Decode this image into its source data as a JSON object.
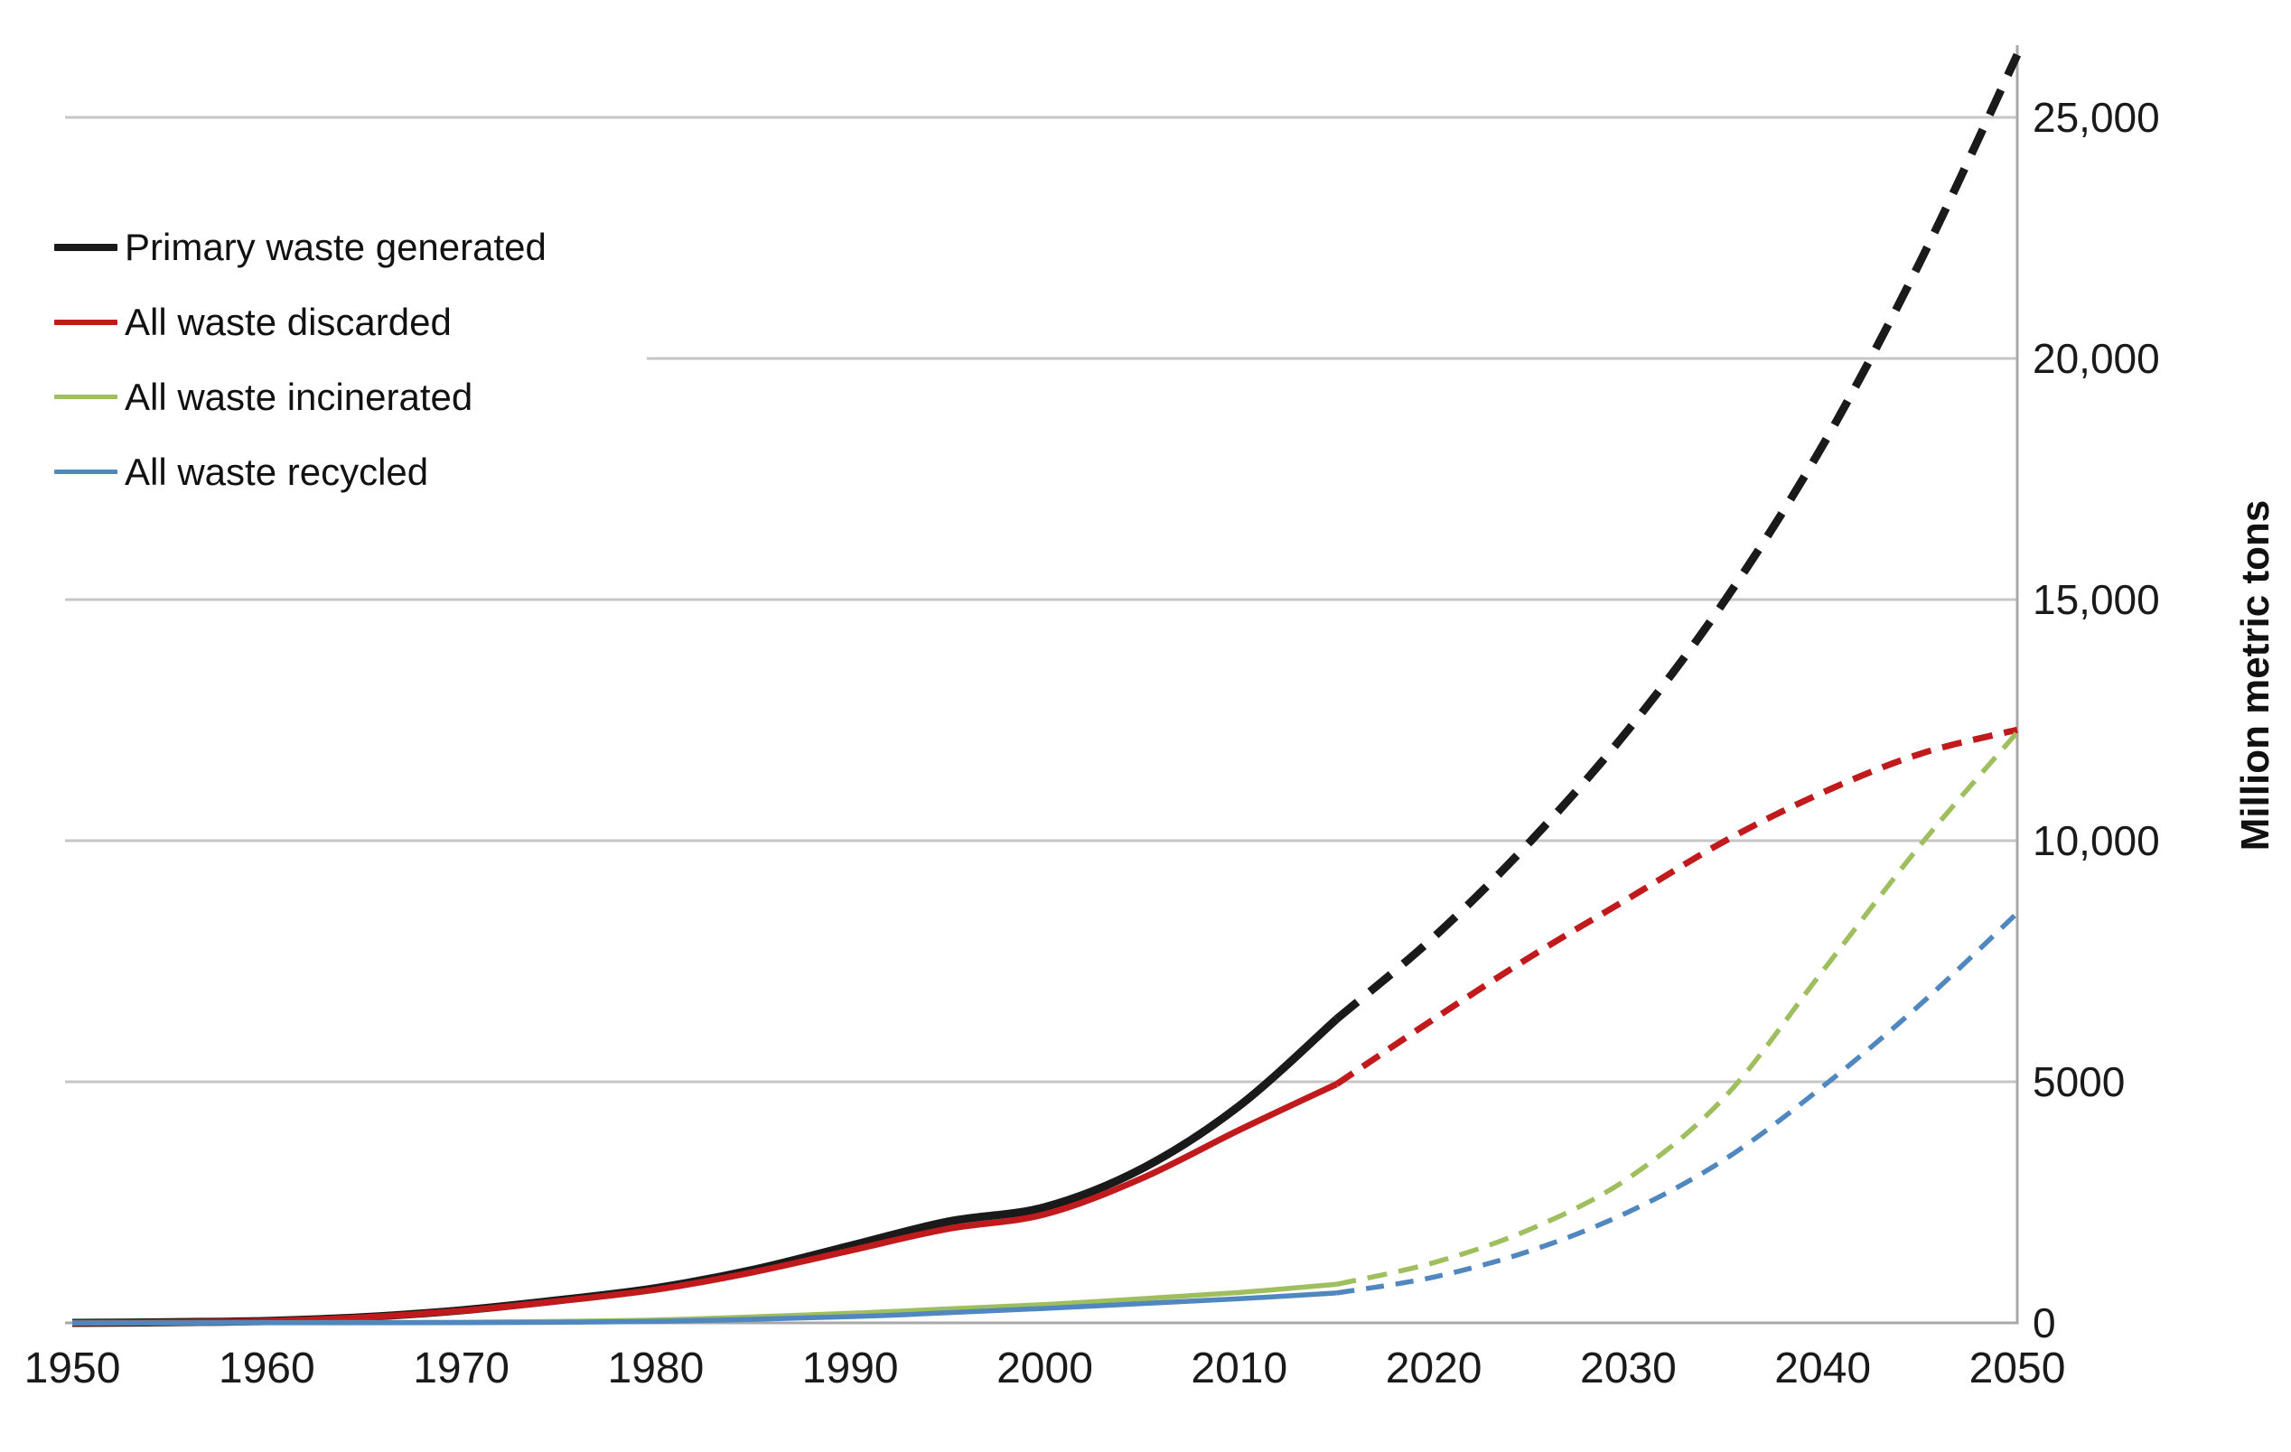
{
  "chart_data": {
    "type": "line",
    "title": "",
    "xlabel": "",
    "ylabel": "Million metric tons",
    "x_range": [
      1950,
      2050
    ],
    "y_range": [
      0,
      26500
    ],
    "grid": "horizontal",
    "legend_position": "top-left-inside",
    "x_ticks": [
      "1950",
      "1960",
      "1970",
      "1980",
      "1990",
      "2000",
      "2010",
      "2020",
      "2030",
      "2040",
      "2050"
    ],
    "y_ticks": [
      {
        "value": 0,
        "label": "0"
      },
      {
        "value": 5000,
        "label": "5000"
      },
      {
        "value": 10000,
        "label": "10,000"
      },
      {
        "value": 15000,
        "label": "15,000"
      },
      {
        "value": 20000,
        "label": "20,000"
      },
      {
        "value": 25000,
        "label": "25,000"
      }
    ],
    "projection_note": "solid lines are historical data through 2015; dashed lines are projections to 2050",
    "series": [
      {
        "name": "Primary waste generated",
        "color": "#1a1a1a",
        "width": 9,
        "dash": "30 18",
        "solid_until": 2015,
        "points": [
          [
            1950,
            0
          ],
          [
            1955,
            15
          ],
          [
            1960,
            40
          ],
          [
            1965,
            120
          ],
          [
            1970,
            260
          ],
          [
            1975,
            470
          ],
          [
            1980,
            720
          ],
          [
            1985,
            1100
          ],
          [
            1990,
            1600
          ],
          [
            1995,
            2100
          ],
          [
            2000,
            2400
          ],
          [
            2005,
            3200
          ],
          [
            2010,
            4500
          ],
          [
            2015,
            6300
          ],
          [
            2020,
            8000
          ],
          [
            2025,
            10000
          ],
          [
            2030,
            12300
          ],
          [
            2035,
            15000
          ],
          [
            2040,
            18200
          ],
          [
            2045,
            22000
          ],
          [
            2050,
            26300
          ]
        ]
      },
      {
        "name": "All waste discarded",
        "color": "#c01a1d",
        "width": 7,
        "dash": "22 13",
        "solid_until": 2015,
        "points": [
          [
            1950,
            0
          ],
          [
            1955,
            14
          ],
          [
            1960,
            38
          ],
          [
            1965,
            115
          ],
          [
            1970,
            250
          ],
          [
            1975,
            450
          ],
          [
            1980,
            690
          ],
          [
            1985,
            1050
          ],
          [
            1990,
            1500
          ],
          [
            1995,
            1950
          ],
          [
            2000,
            2250
          ],
          [
            2005,
            3000
          ],
          [
            2010,
            4000
          ],
          [
            2015,
            4950
          ],
          [
            2020,
            6300
          ],
          [
            2025,
            7600
          ],
          [
            2030,
            8800
          ],
          [
            2035,
            10000
          ],
          [
            2040,
            11000
          ],
          [
            2045,
            11800
          ],
          [
            2050,
            12300
          ]
        ]
      },
      {
        "name": "All waste incinerated",
        "color": "#9fbf5f",
        "width": 5.5,
        "dash": "22 13",
        "solid_until": 2015,
        "points": [
          [
            1950,
            0
          ],
          [
            1960,
            3
          ],
          [
            1970,
            15
          ],
          [
            1980,
            60
          ],
          [
            1990,
            200
          ],
          [
            1995,
            290
          ],
          [
            2000,
            380
          ],
          [
            2005,
            500
          ],
          [
            2010,
            630
          ],
          [
            2015,
            800
          ],
          [
            2020,
            1250
          ],
          [
            2025,
            1950
          ],
          [
            2030,
            3000
          ],
          [
            2035,
            4700
          ],
          [
            2040,
            7300
          ],
          [
            2045,
            9900
          ],
          [
            2050,
            12250
          ]
        ]
      },
      {
        "name": "All waste recycled",
        "color": "#4f87be",
        "width": 5.5,
        "dash": "20 13",
        "solid_until": 2015,
        "points": [
          [
            1950,
            0
          ],
          [
            1960,
            1
          ],
          [
            1970,
            6
          ],
          [
            1980,
            30
          ],
          [
            1990,
            130
          ],
          [
            1995,
            210
          ],
          [
            2000,
            300
          ],
          [
            2005,
            400
          ],
          [
            2010,
            500
          ],
          [
            2015,
            620
          ],
          [
            2020,
            950
          ],
          [
            2025,
            1500
          ],
          [
            2030,
            2300
          ],
          [
            2035,
            3400
          ],
          [
            2040,
            4900
          ],
          [
            2045,
            6600
          ],
          [
            2050,
            8500
          ]
        ]
      }
    ]
  },
  "colors": {
    "background": "#ffffff",
    "gridline": "#c6c6c6",
    "axis_line": "#a8a8a8",
    "tick_text": "#1a1a1a"
  }
}
